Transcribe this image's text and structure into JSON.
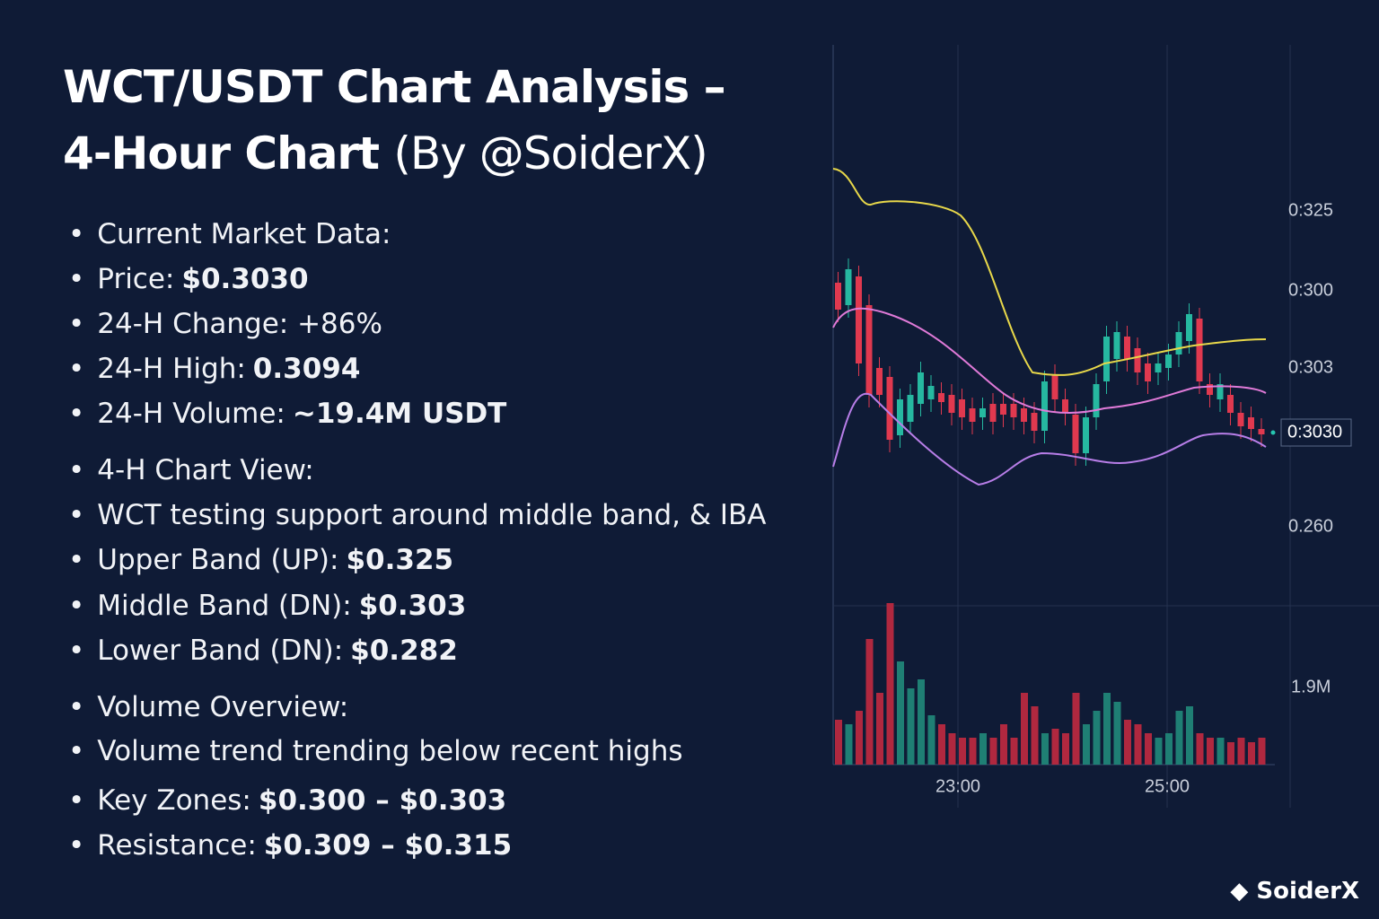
{
  "title": {
    "line1": "WCT/USDT Chart Analysis –",
    "line2_bold": "4-Hour Chart",
    "line2_rest": "(By @SoiderX)"
  },
  "bullets": [
    {
      "label": "Current Market Data:"
    },
    {
      "label": "Price:",
      "value": "$0.3030"
    },
    {
      "label": "24-H Change: +86%"
    },
    {
      "label": "24-H High:",
      "value": "0.3094"
    },
    {
      "label": "24-H Volume:",
      "value": "~19.4M USDT"
    },
    {
      "label": "4-H Chart View:"
    },
    {
      "label": "WCT testing support around middle band, & IBA"
    },
    {
      "label": "Upper Band (UP):",
      "value": "$0.325"
    },
    {
      "label": "Middle Band (DN):",
      "value": "$0.303"
    },
    {
      "label": "Lower Band (DN):",
      "value": "$0.282"
    },
    {
      "label": "Volume Overview:"
    },
    {
      "label": "Volume trend trending below recent highs"
    },
    {
      "label": "Key Zones:",
      "value": "$0.300 – $0.303"
    },
    {
      "label": "Resistance:",
      "value": "$0.309 – $0.315"
    }
  ],
  "chart": {
    "y_labels": [
      "0:325",
      "0:300",
      "0:303",
      "0:3030",
      "0.260"
    ],
    "volume_label": "1.9M",
    "x_labels": [
      "23:00",
      "25:00"
    ]
  },
  "watermark": "SoiderX"
}
